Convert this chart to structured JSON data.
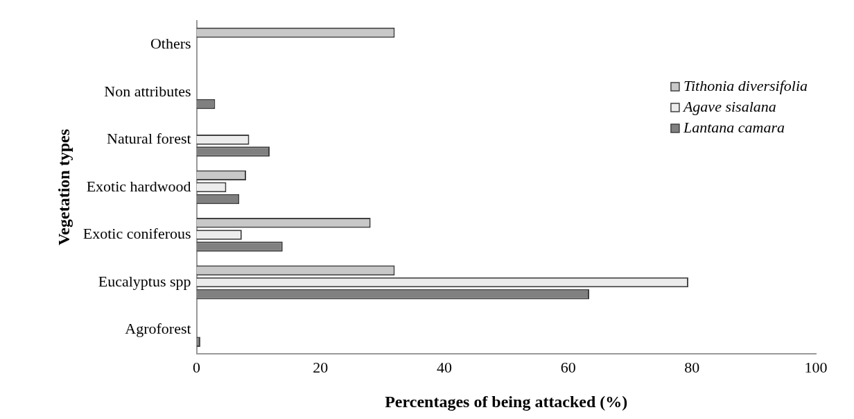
{
  "chart_data": {
    "type": "bar",
    "orientation": "horizontal",
    "xlabel": "Percentages of being attacked (%)",
    "ylabel": "Vegetation types",
    "categories": [
      "Others",
      "Non attributes",
      "Natural forest",
      "Exotic hardwood",
      "Exotic coniferous",
      "Eucalyptus spp",
      "Agroforest"
    ],
    "series": [
      {
        "name": "Tithonia diversifolia",
        "color": "#c8c8c8",
        "values": [
          32,
          null,
          null,
          8.0,
          28.1,
          32,
          null
        ]
      },
      {
        "name": "Agave sisalana",
        "color": "#ececec",
        "values": [
          null,
          null,
          8.5,
          4.8,
          7.3,
          79.4,
          null
        ]
      },
      {
        "name": "Lantana camara",
        "color": "#808080",
        "values": [
          null,
          3.0,
          11.8,
          6.9,
          13.9,
          63.4,
          0.6
        ]
      }
    ],
    "xlim": [
      0,
      100
    ],
    "xticks": [
      0,
      20,
      40,
      60,
      80,
      100
    ],
    "grid": false,
    "legend": "right"
  }
}
